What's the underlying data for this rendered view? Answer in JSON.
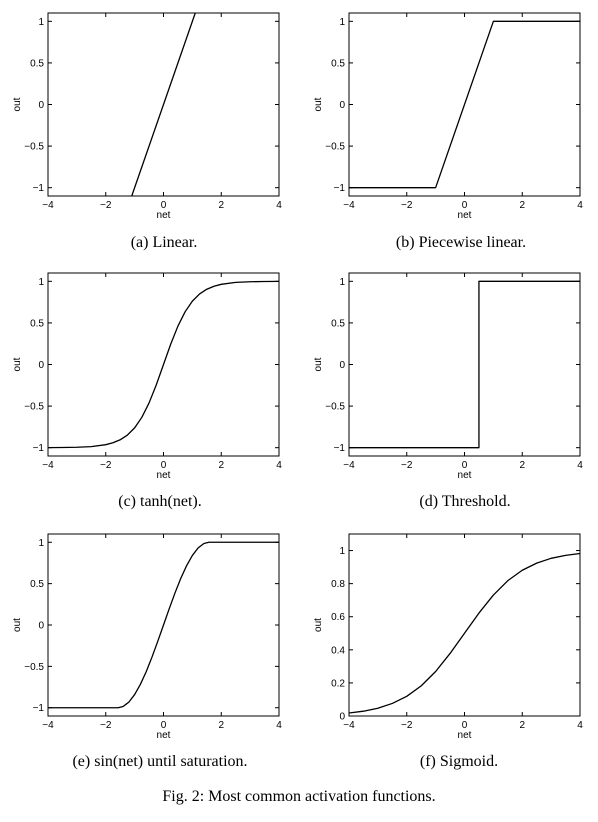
{
  "figure_caption": "Fig. 2: Most common activation functions.",
  "chart_data": [
    {
      "type": "line",
      "panel_caption": "(a) Linear.",
      "xlabel": "net",
      "ylabel": "out",
      "xlim": [
        -4,
        4
      ],
      "ylim": [
        -1.1,
        1.1
      ],
      "xticks": [
        -4,
        -2,
        0,
        2,
        4
      ],
      "yticks": [
        -1,
        -0.5,
        0,
        0.5,
        1
      ],
      "grid": false,
      "series": [
        {
          "x": [
            -1.1,
            1.1
          ],
          "y": [
            -1.1,
            1.1
          ]
        }
      ]
    },
    {
      "type": "line",
      "panel_caption": "(b) Piecewise linear.",
      "xlabel": "net",
      "ylabel": "out",
      "xlim": [
        -4,
        4
      ],
      "ylim": [
        -1.1,
        1.1
      ],
      "xticks": [
        -4,
        -2,
        0,
        2,
        4
      ],
      "yticks": [
        -1,
        -0.5,
        0,
        0.5,
        1
      ],
      "grid": false,
      "series": [
        {
          "x": [
            -4,
            -1,
            1,
            4
          ],
          "y": [
            -1,
            -1,
            1,
            1
          ]
        }
      ]
    },
    {
      "type": "line",
      "panel_caption": "(c) tanh(net).",
      "xlabel": "net",
      "ylabel": "out",
      "xlim": [
        -4,
        4
      ],
      "ylim": [
        -1.1,
        1.1
      ],
      "xticks": [
        -4,
        -2,
        0,
        2,
        4
      ],
      "yticks": [
        -1,
        -0.5,
        0,
        0.5,
        1
      ],
      "grid": false,
      "series": [
        {
          "x": [
            -4,
            -3.5,
            -3,
            -2.5,
            -2,
            -1.75,
            -1.5,
            -1.25,
            -1,
            -0.75,
            -0.5,
            -0.25,
            0,
            0.25,
            0.5,
            0.75,
            1,
            1.25,
            1.5,
            1.75,
            2,
            2.5,
            3,
            3.5,
            4
          ],
          "y": [
            -0.999,
            -0.998,
            -0.995,
            -0.987,
            -0.964,
            -0.941,
            -0.905,
            -0.848,
            -0.762,
            -0.635,
            -0.462,
            -0.245,
            0,
            0.245,
            0.462,
            0.635,
            0.762,
            0.848,
            0.905,
            0.941,
            0.964,
            0.987,
            0.995,
            0.998,
            0.999
          ]
        }
      ]
    },
    {
      "type": "line",
      "panel_caption": "(d) Threshold.",
      "xlabel": "net",
      "ylabel": "out",
      "xlim": [
        -4,
        4
      ],
      "ylim": [
        -1.1,
        1.1
      ],
      "xticks": [
        -4,
        -2,
        0,
        2,
        4
      ],
      "yticks": [
        -1,
        -0.5,
        0,
        0.5,
        1
      ],
      "grid": false,
      "series": [
        {
          "x": [
            -4,
            0.5,
            0.5,
            4
          ],
          "y": [
            -1,
            -1,
            1,
            1
          ]
        }
      ]
    },
    {
      "type": "line",
      "panel_caption": "(e) sin(net) until saturation.",
      "xlabel": "net",
      "ylabel": "out",
      "xlim": [
        -4,
        4
      ],
      "ylim": [
        -1.1,
        1.1
      ],
      "xticks": [
        -4,
        -2,
        0,
        2,
        4
      ],
      "yticks": [
        -1,
        -0.5,
        0,
        0.5,
        1
      ],
      "grid": false,
      "series": [
        {
          "x": [
            -4,
            -1.571,
            -1.4,
            -1.2,
            -1,
            -0.8,
            -0.6,
            -0.4,
            -0.2,
            0,
            0.2,
            0.4,
            0.6,
            0.8,
            1,
            1.2,
            1.4,
            1.571,
            4
          ],
          "y": [
            -1,
            -1,
            -0.985,
            -0.932,
            -0.841,
            -0.717,
            -0.565,
            -0.389,
            -0.199,
            0,
            0.199,
            0.389,
            0.565,
            0.717,
            0.841,
            0.932,
            0.985,
            1,
            1
          ]
        }
      ]
    },
    {
      "type": "line",
      "panel_caption": "(f) Sigmoid.",
      "xlabel": "net",
      "ylabel": "out",
      "xlim": [
        -4,
        4
      ],
      "ylim": [
        0,
        1.1
      ],
      "xticks": [
        -4,
        -2,
        0,
        2,
        4
      ],
      "yticks": [
        0,
        0.2,
        0.4,
        0.6,
        0.8,
        1
      ],
      "grid": false,
      "series": [
        {
          "x": [
            -4,
            -3.5,
            -3,
            -2.5,
            -2,
            -1.5,
            -1,
            -0.5,
            0,
            0.5,
            1,
            1.5,
            2,
            2.5,
            3,
            3.5,
            4
          ],
          "y": [
            0.018,
            0.029,
            0.047,
            0.076,
            0.119,
            0.182,
            0.269,
            0.378,
            0.5,
            0.622,
            0.731,
            0.818,
            0.881,
            0.924,
            0.953,
            0.971,
            0.982
          ]
        }
      ]
    }
  ]
}
